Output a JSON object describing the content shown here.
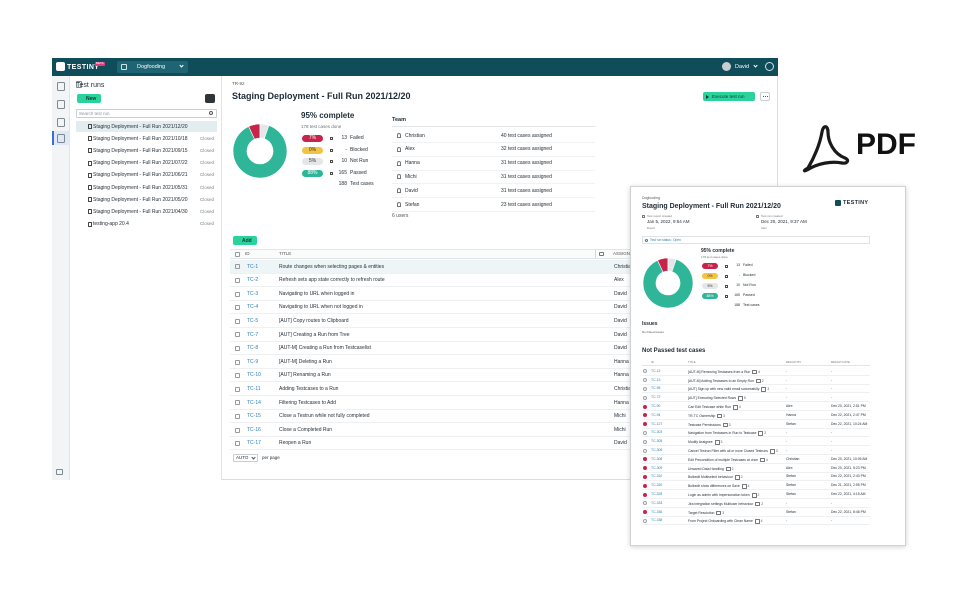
{
  "header": {
    "logo": "TESTINY",
    "badge": "BETA",
    "project": "Dogfooding",
    "user": "David"
  },
  "sidebar": {
    "title": "Test runs",
    "new_button": "New",
    "search_placeholder": "Search test run",
    "runs": [
      {
        "name": "Staging Deployment - Full Run 2021/12/20"
      },
      {
        "name": "Staging Deployment - Full Run 2021/10/18",
        "status": "Closed"
      },
      {
        "name": "Staging Deployment - Full Run 2021/09/15",
        "status": "Closed"
      },
      {
        "name": "Staging Deployment - Full Run 2021/07/22",
        "status": "Closed"
      },
      {
        "name": "Staging Deployment - Full Run 2021/06/21",
        "status": "Closed"
      },
      {
        "name": "Staging Deployment - Full Run 2021/05/31",
        "status": "Closed"
      },
      {
        "name": "Staging Deployment - Full Run 2021/05/20",
        "status": "Closed"
      },
      {
        "name": "Staging Deployment - Full Run 2021/04/30",
        "status": "Closed"
      },
      {
        "name": "testing-app 20.4",
        "status": "Closed"
      }
    ]
  },
  "run": {
    "id": "TR-92",
    "title": "Staging Deployment - Full Run 2021/12/20",
    "execute_button": "Execute test run",
    "progress": {
      "complete": "95% complete",
      "done": "178 test cases done",
      "statuses": [
        {
          "pct": "7%",
          "count": 13,
          "label": "Failed",
          "color": "#c8234a",
          "text_color": "#ffffff"
        },
        {
          "pct": "0%",
          "count": "-",
          "label": "Blocked",
          "color": "#f5c342",
          "text_color": "#333333"
        },
        {
          "pct": "5%",
          "count": 10,
          "label": "Not Run",
          "color": "#e4e6e8",
          "text_color": "#333333"
        },
        {
          "pct": "88%",
          "count": 165,
          "label": "Passed",
          "color": "#2fb597",
          "text_color": "#ffffff"
        }
      ],
      "total": {
        "count": 188,
        "label": "Test cases"
      }
    },
    "team": {
      "title": "Team",
      "members": [
        {
          "name": "Christian",
          "assigned": "40 test cases assigned"
        },
        {
          "name": "Alex",
          "assigned": "32 test cases assigned"
        },
        {
          "name": "Hanna",
          "assigned": "31 test cases assigned"
        },
        {
          "name": "Michi",
          "assigned": "31 test cases assigned"
        },
        {
          "name": "David",
          "assigned": "31 test cases assigned"
        },
        {
          "name": "Stefan",
          "assigned": "23 test cases assigned"
        }
      ],
      "users": "6 users"
    },
    "add_button": "Add",
    "table": {
      "columns": [
        "ID",
        "TITLE",
        "ASSIGNEE"
      ],
      "rows": [
        {
          "id": "TC-1",
          "title": "Route changes when selecting pages & entities",
          "assignee": "Christian"
        },
        {
          "id": "TC-2",
          "title": "Refresh sets app state correctly to refresh route",
          "assignee": "Alex"
        },
        {
          "id": "TC-3",
          "title": "Navigating to URL when logged in",
          "assignee": "David"
        },
        {
          "id": "TC-4",
          "title": "Navigating to URL when not logged in",
          "assignee": "David"
        },
        {
          "id": "TC-5",
          "title": "[AUT] Copy routes to Clipboard",
          "assignee": "David"
        },
        {
          "id": "TC-7",
          "title": "[AUT] Creating a Run from Tree",
          "assignee": "David"
        },
        {
          "id": "TC-8",
          "title": "[AUT-M] Creating a Run from Testcaselist",
          "assignee": "David"
        },
        {
          "id": "TC-9",
          "title": "[AUT-M] Deleting a Run",
          "assignee": "Hanna"
        },
        {
          "id": "TC-10",
          "title": "[AUT] Renaming a Run",
          "assignee": "Hanna"
        },
        {
          "id": "TC-11",
          "title": "Adding Testcases to a Run",
          "assignee": "Christian"
        },
        {
          "id": "TC-14",
          "title": "Filtering Testcases to Add",
          "assignee": "Hanna"
        },
        {
          "id": "TC-15",
          "title": "Close a Testrun while not fully completed",
          "assignee": "Michi"
        },
        {
          "id": "TC-16",
          "title": "Close a Completed Run",
          "assignee": "Michi"
        },
        {
          "id": "TC-17",
          "title": "Reopen a Run",
          "assignee": "David"
        }
      ],
      "per_page_value": "AUTO",
      "per_page_label": "per page"
    }
  },
  "pdf": {
    "project": "Dogfooding",
    "title": "Staging Deployment - Full Run 2021/12/20",
    "logo": "TESTINY",
    "meta": [
      {
        "label": "Test report created",
        "date": "Jan 5, 2022, 9:54 AM",
        "user": "David"
      },
      {
        "label": "Test run created",
        "date": "Dec 20, 2021, 9:37 AM",
        "user": "Alex"
      }
    ],
    "run_status_label": "Test run status:",
    "run_status": "Open",
    "progress": {
      "complete": "95% complete",
      "done": "178 test cases done",
      "statuses": [
        {
          "pct": "7%",
          "count": 13,
          "label": "Failed",
          "color": "#c8234a",
          "text_color": "#ffffff"
        },
        {
          "pct": "0%",
          "count": "-",
          "label": "Blocked",
          "color": "#f5c342",
          "text_color": "#333333"
        },
        {
          "pct": "5%",
          "count": 10,
          "label": "Not Run",
          "color": "#e4e6e8",
          "text_color": "#333333"
        },
        {
          "pct": "88%",
          "count": 165,
          "label": "Passed",
          "color": "#2fb597",
          "text_color": "#ffffff"
        }
      ],
      "total": {
        "count": 188,
        "label": "Test cases"
      }
    },
    "issues_title": "Issues",
    "issues_text": "No linked issues",
    "not_passed_title": "Not Passed test cases",
    "columns": [
      "ID",
      "TITLE",
      "RESULT BY",
      "RESULT DATE"
    ],
    "rows": [
      {
        "id": "TC-12",
        "title": "[AUT-M] Removing Testcases from a Run",
        "comments": "4",
        "result": "not run",
        "by": "-",
        "date": "-"
      },
      {
        "id": "TC-13",
        "title": "[AUT-M] Adding Testcases to an Empty Run",
        "comments": "2",
        "result": "not run",
        "by": "-",
        "date": "-"
      },
      {
        "id": "TC-95",
        "title": "[AUT] Sign up with new valid email successfully",
        "comments": "3",
        "result": "not run",
        "by": "-",
        "date": "-"
      },
      {
        "id": "TC-72",
        "title": "[AUT] Executing Selected Rows",
        "comments": "5",
        "result": "not run",
        "by": "-",
        "date": "-"
      },
      {
        "id": "TC-90",
        "title": "Can Edit Testcase while Run",
        "comments": "4",
        "result": "failed",
        "by": "Alex",
        "date": "Dec 20, 2021, 2:51 PM"
      },
      {
        "id": "TC-94",
        "title": "TR-TC Ownership",
        "comments": "3",
        "result": "failed",
        "by": "Hanna",
        "date": "Dec 22, 2021, 2:47 PM"
      },
      {
        "id": "TC-127",
        "title": "Testcase Permissions",
        "comments": "3",
        "result": "failed",
        "by": "Stefan",
        "date": "Dec 22, 2021, 10:24 AM"
      },
      {
        "id": "TC-303",
        "title": "Navigation from Testcases in Run to Testcase",
        "comments": "2",
        "result": "not run",
        "by": "-",
        "date": "-"
      },
      {
        "id": "TC-305",
        "title": "Modify Assignee",
        "comments": "3",
        "result": "not run",
        "by": "-",
        "date": "-"
      },
      {
        "id": "TC-306",
        "title": "Cancel Testrun Filter with all or none Closed Testruns",
        "comments": "3",
        "result": "not run",
        "by": "-",
        "date": "-"
      },
      {
        "id": "TC-308",
        "title": "Edit Precondition of multiple Testcases at once",
        "comments": "4",
        "result": "failed",
        "by": "Christian",
        "date": "Dec 20, 2021, 10:05 AM"
      },
      {
        "id": "TC-309",
        "title": "Unsaved Data Handling",
        "comments": "2",
        "result": "failed",
        "by": "Alex",
        "date": "Dec 20, 2021, 5:23 PM"
      },
      {
        "id": "TC-310",
        "title": "Bulkedit Multiselect behaviour",
        "comments": "2",
        "result": "failed",
        "by": "Stefan",
        "date": "Dec 22, 2021, 2:43 PM"
      },
      {
        "id": "TC-320",
        "title": "Bulkedit show differences on Save",
        "comments": "4",
        "result": "failed",
        "by": "Stefan",
        "date": "Dec 21, 2021, 2:55 PM"
      },
      {
        "id": "TC-328",
        "title": "Login as admin with Impersonation token",
        "comments": "2",
        "result": "failed",
        "by": "Stefan",
        "date": "Dec 22, 2021, 4:15 AM"
      },
      {
        "id": "TC-333",
        "title": "Jira integration settings Multiuser behaviour",
        "comments": "2",
        "result": "not run",
        "by": "-",
        "date": "-"
      },
      {
        "id": "TC-336",
        "title": "Target Resolution",
        "comments": "3",
        "result": "failed",
        "by": "Stefan",
        "date": "Dec 22, 2021, 8:46 PM"
      },
      {
        "id": "TC-338",
        "title": "From Project Onboarding with Clean Name",
        "comments": "4",
        "result": "not run",
        "by": "-",
        "date": "-"
      }
    ]
  },
  "pdf_badge": "PDF"
}
